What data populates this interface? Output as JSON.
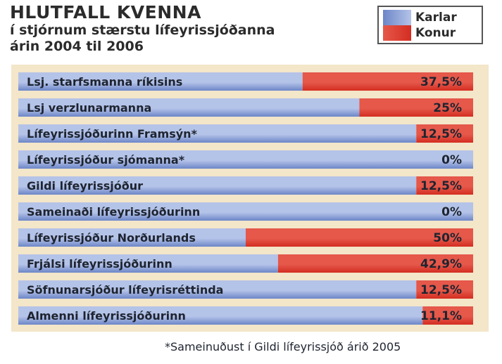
{
  "header": {
    "title": "HLUTFALL KVENNA",
    "subtitle_line1": "í stjórnum stærstu lífeyrissjóðanna",
    "subtitle_line2": "árin 2004 til 2006"
  },
  "legend": {
    "karlar": "Karlar",
    "konur": "Konur"
  },
  "colors": {
    "karlar_light": "#b4c3e8",
    "karlar_dark": "#6c86c8",
    "konur_light": "#e5584a",
    "konur_dark": "#d42d21",
    "panel": "#f3e6c9"
  },
  "footnote": "*Sameinuðust í Gildi lífeyrissjóð árið 2005",
  "chart_data": {
    "type": "bar",
    "orientation": "horizontal",
    "stacked": true,
    "title": "HLUTFALL KVENNA",
    "categories": [
      "Lsj. starfsmanna ríkisins",
      "Lsj verzlunarmanna",
      "Lífeyrissjóðurinn Framsýn*",
      "Lífeyrissjóður sjómanna*",
      "Gildi lífeyrissjóður",
      "Sameinaði lífeyrissjóðurinn",
      "Lífeyrissjóður Norðurlands",
      "Frjálsi lífeyrissjóðurinn",
      "Söfnunarsjóður lífeyrisréttinda",
      "Almenni lífeyrissjóðurinn"
    ],
    "value_labels": [
      "37,5%",
      "25%",
      "12,5%",
      "0%",
      "12,5%",
      "0%",
      "50%",
      "42,9%",
      "12,5%",
      "11,1%"
    ],
    "series": [
      {
        "name": "Karlar",
        "values": [
          62.5,
          75,
          87.5,
          100,
          87.5,
          100,
          50,
          57.1,
          87.5,
          88.9
        ]
      },
      {
        "name": "Konur",
        "values": [
          37.5,
          25,
          12.5,
          0,
          12.5,
          0,
          50,
          42.9,
          12.5,
          11.1
        ]
      }
    ],
    "xlim": [
      0,
      100
    ],
    "grid": false,
    "legend_position": "top-right"
  }
}
